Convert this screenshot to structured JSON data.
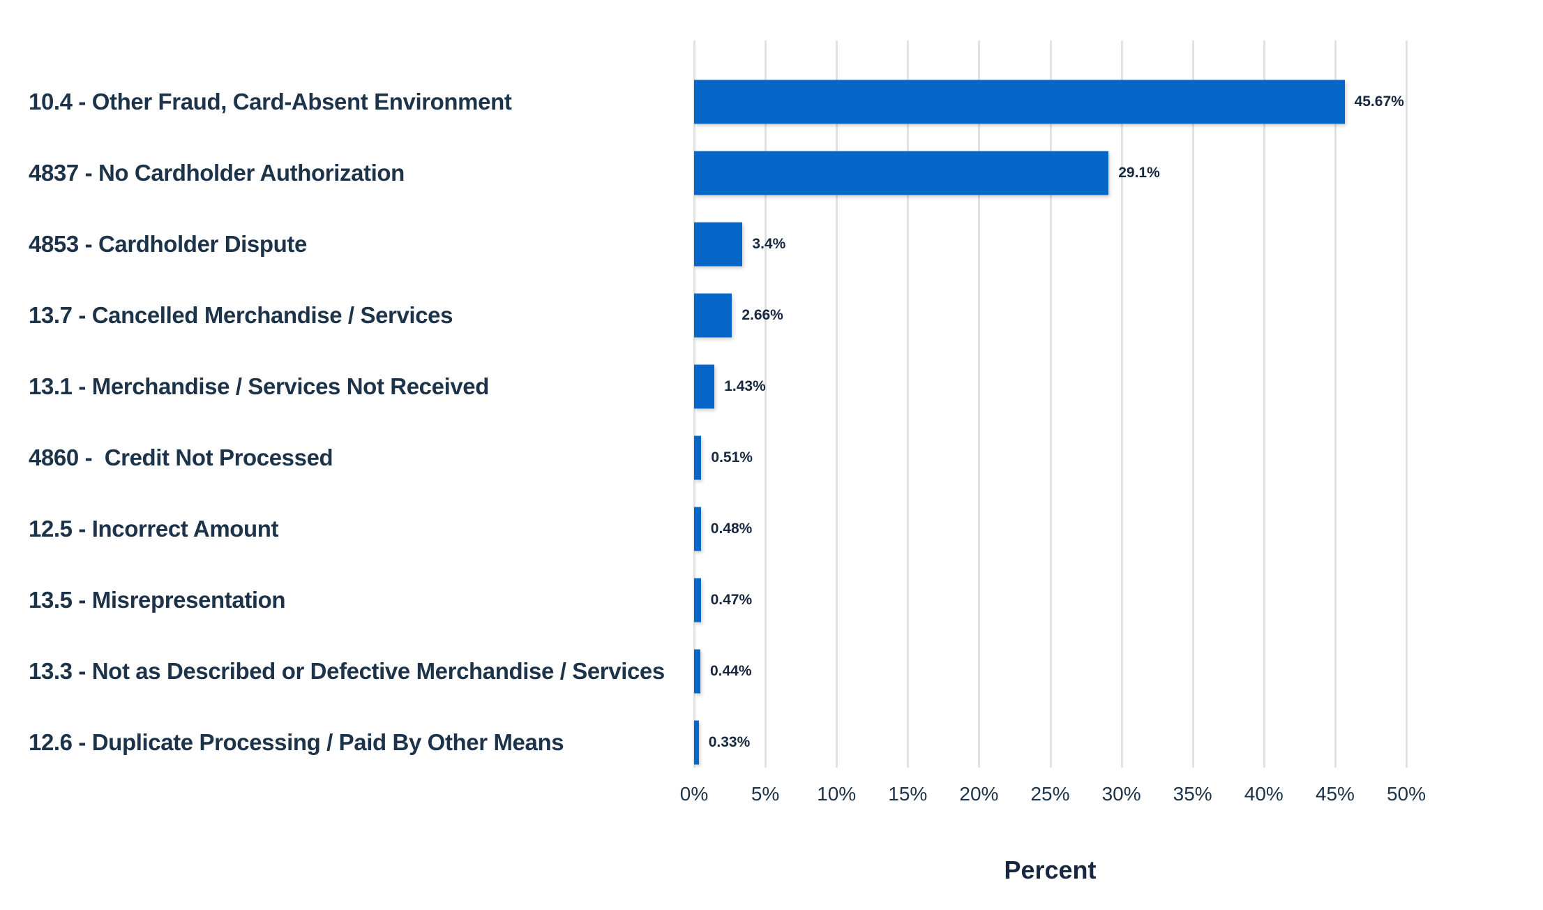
{
  "chart_data": {
    "type": "bar",
    "orientation": "horizontal",
    "title": "",
    "xlabel": "Percent",
    "ylabel": "",
    "xlim": [
      0,
      50
    ],
    "grid": "vertical",
    "legend": "none",
    "x_ticks": [
      {
        "value": 0,
        "label": "0%"
      },
      {
        "value": 5,
        "label": "5%"
      },
      {
        "value": 10,
        "label": "10%"
      },
      {
        "value": 15,
        "label": "15%"
      },
      {
        "value": 20,
        "label": "20%"
      },
      {
        "value": 25,
        "label": "25%"
      },
      {
        "value": 30,
        "label": "30%"
      },
      {
        "value": 35,
        "label": "35%"
      },
      {
        "value": 40,
        "label": "40%"
      },
      {
        "value": 45,
        "label": "45%"
      },
      {
        "value": 50,
        "label": "50%"
      }
    ],
    "points": [
      {
        "category": "10.4 - Other Fraud, Card-Absent Environment",
        "value": 45.67,
        "value_label": "45.67%"
      },
      {
        "category": "4837 - No Cardholder Authorization",
        "value": 29.1,
        "value_label": "29.1%"
      },
      {
        "category": "4853 - Cardholder Dispute",
        "value": 3.4,
        "value_label": "3.4%"
      },
      {
        "category": "13.7 - Cancelled Merchandise / Services",
        "value": 2.66,
        "value_label": "2.66%"
      },
      {
        "category": "13.1 - Merchandise / Services Not Received",
        "value": 1.43,
        "value_label": "1.43%"
      },
      {
        "category": "4860 -  Credit Not Processed",
        "value": 0.51,
        "value_label": "0.51%"
      },
      {
        "category": "12.5 - Incorrect Amount",
        "value": 0.48,
        "value_label": "0.48%"
      },
      {
        "category": "13.5 - Misrepresentation",
        "value": 0.47,
        "value_label": "0.47%"
      },
      {
        "category": "13.3 - Not as Described or Defective Merchandise / Services",
        "value": 0.44,
        "value_label": "0.44%"
      },
      {
        "category": "12.6 - Duplicate Processing / Paid By Other Means",
        "value": 0.33,
        "value_label": "0.33%"
      }
    ],
    "colors": {
      "bar": "#0667c8",
      "category_text": "#1d3349",
      "value_text": "#16273f",
      "axis_text": "#1d3349",
      "gridline": "#e2e2e2",
      "background": "#ffffff"
    }
  }
}
